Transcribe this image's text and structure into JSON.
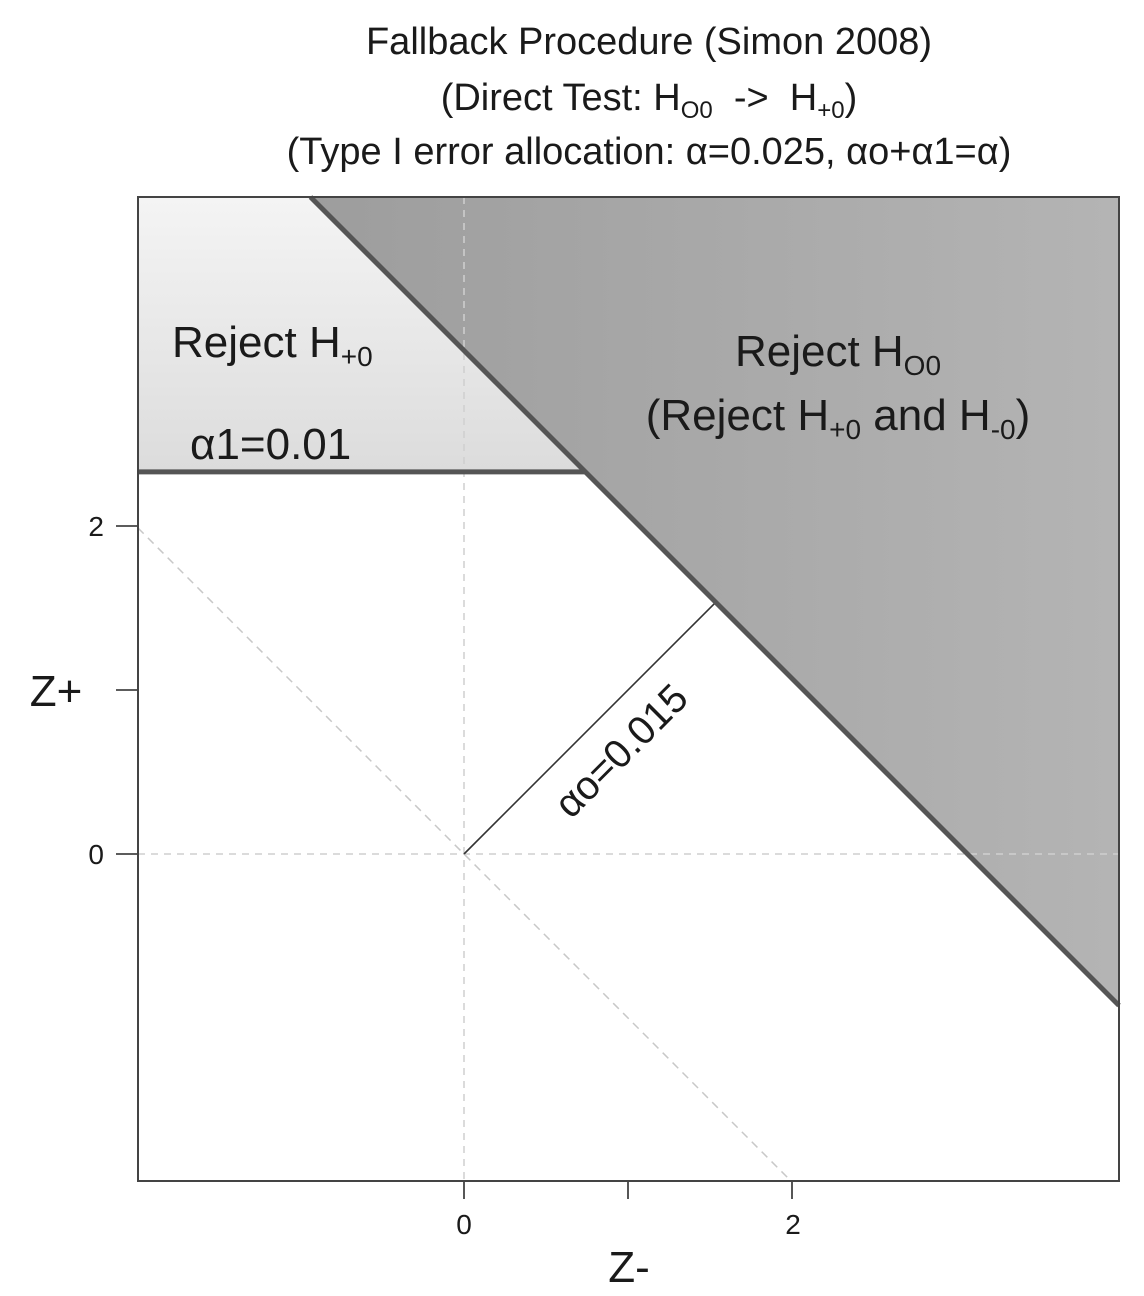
{
  "title": {
    "line1": "Fallback Procedure (Simon 2008)",
    "line2_pre": "(Direct Test: H",
    "line2_sub1": "O0",
    "line2_mid": "  ->  H",
    "line2_sub2": "+0",
    "line2_post": ")",
    "line3": "(Type I error allocation: α=0.025, αo+α1=α)"
  },
  "axes": {
    "xlabel": "Z-",
    "ylabel": "Z+",
    "x_tick_labels": [
      "0",
      "2"
    ],
    "y_tick_labels": [
      "0",
      "2"
    ]
  },
  "regions": {
    "reject_plus": {
      "pre": "Reject H",
      "sub": "+0"
    },
    "reject_oo": {
      "line1_pre": "Reject H",
      "line1_sub": "O0",
      "line2_pre": "(Reject H",
      "line2_sub1": "+0",
      "line2_mid": " and H",
      "line2_sub2": "-0",
      "line2_post": ")"
    }
  },
  "annotations": {
    "alpha1": "α1=0.01",
    "alpha0": "αo=0.015"
  },
  "chart_data": {
    "type": "region-diagram",
    "x_range": [
      -2,
      4
    ],
    "y_range": [
      -2,
      4
    ],
    "x_ticks": [
      0,
      1,
      2
    ],
    "y_ticks": [
      0,
      1,
      2
    ],
    "alpha": 0.025,
    "alpha1": 0.01,
    "alpha0": 0.015,
    "horizontal_boundary_z": 2.33,
    "diagonal_boundary_sum": 3.07,
    "colors": {
      "reject_oo": "#9a9a9a",
      "reject_plus": "#e8e8e8",
      "boundary": "#555555",
      "guide": "#c8c8c8"
    }
  }
}
